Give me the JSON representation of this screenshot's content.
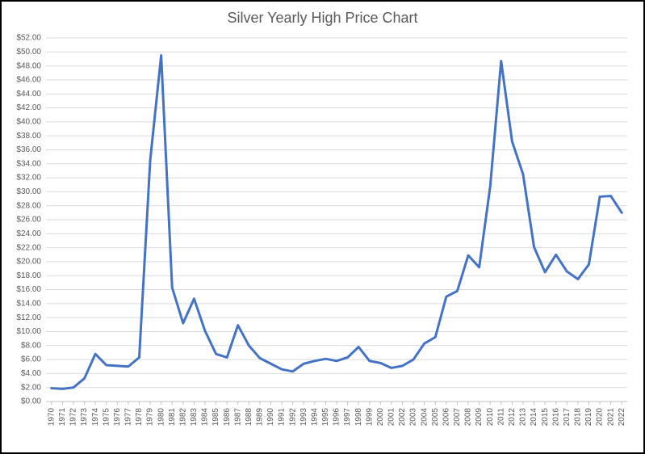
{
  "chart": {
    "type": "line",
    "title": "Silver Yearly High Price Chart",
    "title_fontsize": 18,
    "title_color": "#595959",
    "background_color": "#ffffff",
    "border_color": "#000000",
    "border_width": 2,
    "grid_color": "#d9d9d9",
    "axis_color": "#bfbfbf",
    "label_color": "#595959",
    "tick_fontsize": 10,
    "line_color": "#4472c4",
    "line_width": 3,
    "ylim": [
      0,
      52
    ],
    "ytick_step": 2,
    "ytick_prefix": "$",
    "ytick_decimals": 2,
    "x_categories": [
      "1970",
      "1971",
      "1972",
      "1973",
      "1974",
      "1975",
      "1976",
      "1977",
      "1978",
      "1979",
      "1980",
      "1981",
      "1982",
      "1983",
      "1984",
      "1985",
      "1986",
      "1987",
      "1988",
      "1989",
      "1990",
      "1991",
      "1992",
      "1993",
      "1994",
      "1995",
      "1996",
      "1997",
      "1998",
      "1999",
      "2000",
      "2001",
      "2002",
      "2003",
      "2004",
      "2005",
      "2006",
      "2007",
      "2008",
      "2009",
      "2010",
      "2011",
      "2012",
      "2013",
      "2014",
      "2015",
      "2016",
      "2017",
      "2018",
      "2019",
      "2020",
      "2021",
      "2022"
    ],
    "values": [
      1.9,
      1.8,
      2.0,
      3.3,
      6.8,
      5.2,
      5.1,
      5.0,
      6.3,
      34.5,
      49.5,
      16.3,
      11.2,
      14.7,
      10.1,
      6.8,
      6.3,
      10.9,
      8.0,
      6.2,
      5.4,
      4.6,
      4.3,
      5.4,
      5.8,
      6.1,
      5.8,
      6.3,
      7.8,
      5.8,
      5.5,
      4.8,
      5.1,
      6.0,
      8.3,
      9.2,
      15.0,
      15.8,
      20.9,
      19.2,
      30.7,
      48.7,
      37.2,
      32.5,
      22.1,
      18.5,
      21.0,
      18.6,
      17.5,
      19.6,
      29.3,
      29.4,
      27.0
    ]
  }
}
